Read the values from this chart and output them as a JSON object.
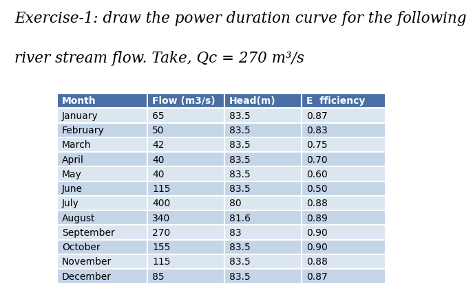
{
  "title_line1": "Exercise-1: draw the power duration curve for the following",
  "title_line2": "river stream flow. Take, Qc = 270 m³/s",
  "columns": [
    "Month",
    "Flow (m3/s)",
    "Head(m)",
    "E  fficiency"
  ],
  "rows": [
    [
      "January",
      "65",
      "83.5",
      "0.87"
    ],
    [
      "February",
      "50",
      "83.5",
      "0.83"
    ],
    [
      "March",
      "42",
      "83.5",
      "0.75"
    ],
    [
      "April",
      "40",
      "83.5",
      "0.70"
    ],
    [
      "May",
      "40",
      "83.5",
      "0.60"
    ],
    [
      "June",
      "115",
      "83.5",
      "0.50"
    ],
    [
      "July",
      "400",
      "80",
      "0.88"
    ],
    [
      "August",
      "340",
      "81.6",
      "0.89"
    ],
    [
      "September",
      "270",
      "83",
      "0.90"
    ],
    [
      "October",
      "155",
      "83.5",
      "0.90"
    ],
    [
      "November",
      "115",
      "83.5",
      "0.88"
    ],
    [
      "December",
      "85",
      "83.5",
      "0.87"
    ]
  ],
  "header_bg": "#4a6fa5",
  "odd_row_bg": "#dce6f1",
  "even_row_bg": "#c5d5e8",
  "header_text_color": "#ffffff",
  "row_text_color": "#000000",
  "background_color": "#ffffff",
  "title_font_size": 15.5,
  "table_font_size": 10,
  "header_font_size": 10
}
